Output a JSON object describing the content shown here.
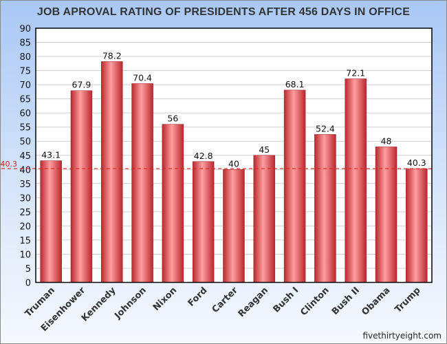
{
  "chart_data": {
    "type": "bar",
    "title": "JOB APROVAL RATING OF PRESIDENTS AFTER 456 DAYS IN OFFICE",
    "categories": [
      "Truman",
      "Eisenhower",
      "Kennedy",
      "Johnson",
      "Nixon",
      "Ford",
      "Carter",
      "Reagan",
      "Bush I",
      "Clinton",
      "Bush II",
      "Obama",
      "Trump"
    ],
    "values": [
      43.1,
      67.9,
      78.2,
      70.4,
      56,
      42.8,
      40,
      45,
      68.1,
      52.4,
      72.1,
      48,
      40.3
    ],
    "value_labels": [
      "43.1",
      "67.9",
      "78.2",
      "70.4",
      "56",
      "42.8",
      "40",
      "45",
      "68.1",
      "52.4",
      "72.1",
      "48",
      "40.3"
    ],
    "xlabel": "",
    "ylabel": "",
    "ylim": [
      0,
      90
    ],
    "yticks": [
      0,
      5,
      10,
      15,
      20,
      25,
      30,
      35,
      40,
      45,
      50,
      55,
      60,
      65,
      70,
      75,
      80,
      85,
      90
    ],
    "grid": true,
    "reference_line": {
      "value": 40.3,
      "label": "40.3",
      "color": "#e02020",
      "style": "dashed"
    },
    "bar_color": "#e8454a"
  },
  "watermark": "fivethirtyeight.com"
}
